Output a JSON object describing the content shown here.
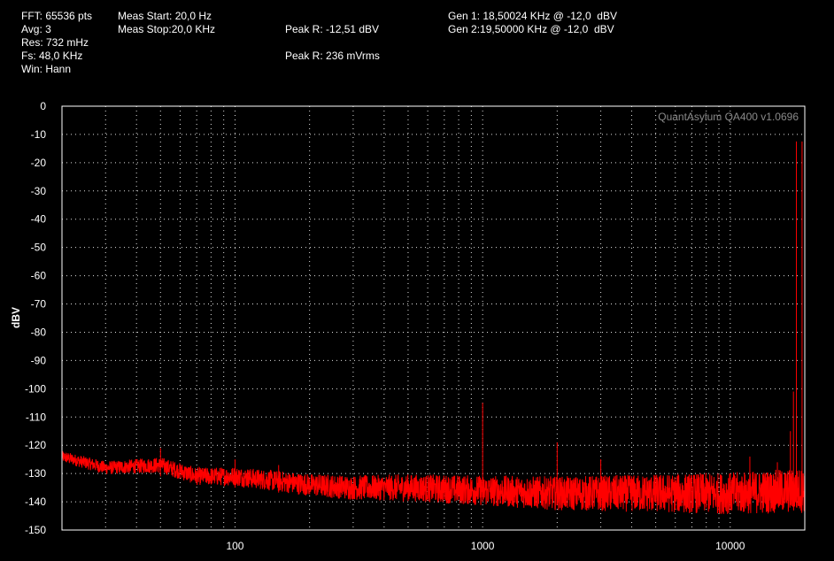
{
  "header": {
    "fft": "FFT: 65536 pts",
    "avg": "Avg: 3",
    "res": "Res: 732 mHz",
    "fs": "Fs: 48,0 KHz",
    "win": "Win: Hann",
    "meas_start": "Meas Start: 20,0 Hz",
    "meas_stop": "Meas Stop:20,0 KHz",
    "peak_dbv": "Peak R: -12,51 dBV",
    "peak_rms": "Peak R: 236 mVrms",
    "gen1": "Gen 1: 18,50024 KHz @ -12,0  dBV",
    "gen2": "Gen 2:19,50000 KHz @ -12,0  dBV"
  },
  "brand": "QuantAsylum QA400 v1.0696",
  "colors": {
    "background": "#000000",
    "trace": "#ff0000",
    "grid": "#e0e0e0",
    "axis": "#ffffff",
    "brand": "#8a8a8a"
  },
  "chart_data": {
    "type": "line",
    "title": "",
    "xlabel": "",
    "ylabel": "dBV",
    "xscale": "log",
    "xlim": [
      20,
      20000
    ],
    "ylim": [
      -150,
      0
    ],
    "grid": true,
    "x_ticks": [
      100,
      1000,
      10000
    ],
    "x_tick_labels": [
      "100",
      "1000",
      "10000"
    ],
    "y_ticks": [
      0,
      -10,
      -20,
      -30,
      -40,
      -50,
      -60,
      -70,
      -80,
      -90,
      -100,
      -110,
      -120,
      -130,
      -140,
      -150
    ],
    "y_tick_labels": [
      "0",
      "-10",
      "-20",
      "-30",
      "-40",
      "-50",
      "-60",
      "-70",
      "-80",
      "-90",
      "-100",
      "-110",
      "-120",
      "-130",
      "-140",
      "-150"
    ],
    "series": [
      {
        "color": "#ff0000",
        "noise_floor": {
          "x": [
            20,
            30,
            50,
            70,
            100,
            200,
            300,
            500,
            1000,
            2000,
            5000,
            10000,
            20000
          ],
          "y": [
            -124,
            -128,
            -127,
            -131,
            -131,
            -134,
            -135,
            -135,
            -136,
            -137,
            -137,
            -137,
            -136
          ]
        },
        "spikes": [
          {
            "x": 50,
            "y": -121
          },
          {
            "x": 100,
            "y": -125
          },
          {
            "x": 150,
            "y": -127
          },
          {
            "x": 1000,
            "y": -105
          },
          {
            "x": 2000,
            "y": -119
          },
          {
            "x": 3000,
            "y": -125
          },
          {
            "x": 4000,
            "y": -131
          },
          {
            "x": 12000,
            "y": -124
          },
          {
            "x": 15500,
            "y": -126
          },
          {
            "x": 17500,
            "y": -115
          },
          {
            "x": 18000,
            "y": -101
          },
          {
            "x": 18500,
            "y": -12.5
          },
          {
            "x": 19500,
            "y": -12.5
          }
        ]
      }
    ]
  }
}
